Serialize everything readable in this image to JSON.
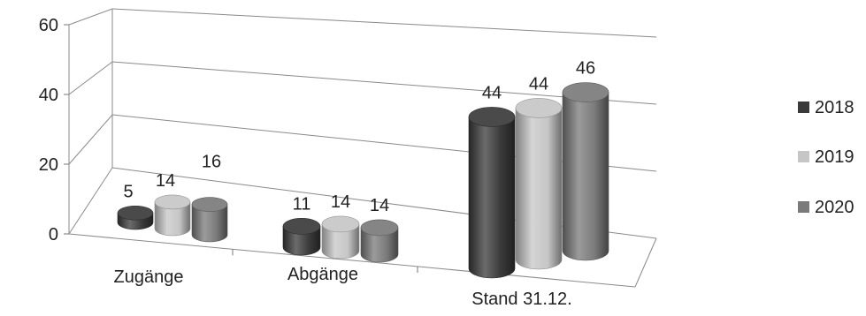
{
  "chart_data": {
    "type": "bar",
    "title": "",
    "xlabel": "",
    "ylabel": "",
    "categories": [
      "Zugänge",
      "Abgänge",
      "Stand 31.12."
    ],
    "series": [
      {
        "name": "2018",
        "values": [
          5,
          11,
          44
        ],
        "color": "#3a3a3a"
      },
      {
        "name": "2019",
        "values": [
          14,
          14,
          44
        ],
        "color": "#c6c6c6"
      },
      {
        "name": "2020",
        "values": [
          16,
          14,
          46
        ],
        "color": "#7a7a7a"
      }
    ],
    "ylim": [
      0,
      60
    ],
    "yticks": [
      "0",
      "20",
      "40",
      "60"
    ],
    "grid": true,
    "legend": "right",
    "style": "3d-cylinder"
  }
}
